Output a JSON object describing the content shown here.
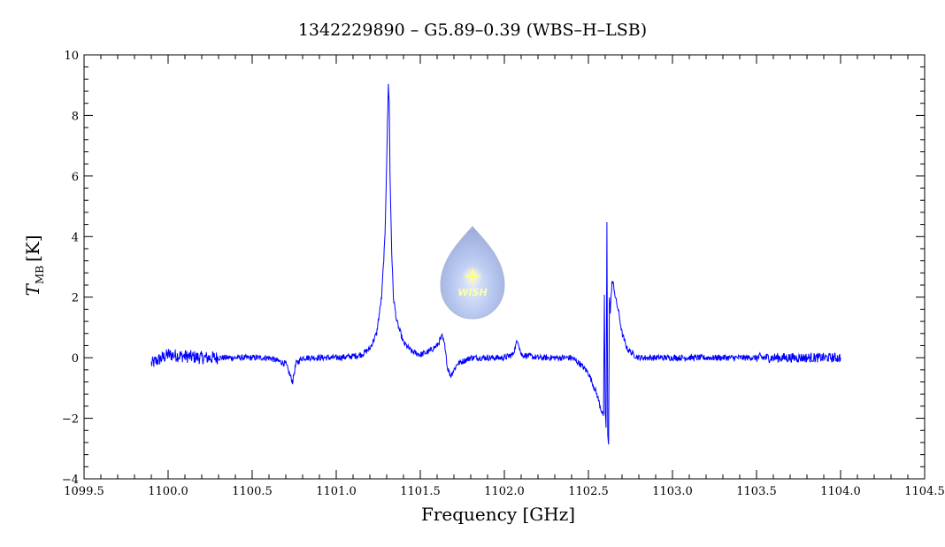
{
  "chart_data": {
    "type": "line",
    "title": "1342229890 – G5.89–0.39 (WBS–H–LSB)",
    "xlabel": "Frequency [GHz]",
    "ylabel": {
      "symbol": "T",
      "subscript": "MB",
      "unit": "[K]"
    },
    "xlim": [
      1099.5,
      1104.5
    ],
    "ylim": [
      -4,
      10
    ],
    "x_ticks": [
      "1099.5",
      "1100.0",
      "1100.5",
      "1101.0",
      "1101.5",
      "1102.0",
      "1102.5",
      "1103.0",
      "1103.5",
      "1104.0",
      "1104.5"
    ],
    "y_ticks": [
      "−4",
      "−2",
      "0",
      "2",
      "4",
      "6",
      "8",
      "10"
    ],
    "grid": false,
    "series_color": "#0000ff",
    "series": [
      {
        "x": [
          1099.9,
          1100.0,
          1100.2,
          1100.4,
          1100.6,
          1100.7,
          1100.74,
          1100.76,
          1100.8,
          1100.9,
          1101.0,
          1101.1,
          1101.15,
          1101.2,
          1101.24,
          1101.27,
          1101.29,
          1101.3,
          1101.31,
          1101.315,
          1101.32,
          1101.33,
          1101.34,
          1101.36,
          1101.4,
          1101.45,
          1101.5,
          1101.55,
          1101.6,
          1101.63,
          1101.65,
          1101.66,
          1101.68,
          1101.7,
          1101.72,
          1101.8,
          1101.9,
          1102.0,
          1102.05,
          1102.08,
          1102.1,
          1102.2,
          1102.3,
          1102.4,
          1102.45,
          1102.5,
          1102.55,
          1102.58,
          1102.59,
          1102.595,
          1102.6,
          1102.605,
          1102.61,
          1102.615,
          1102.62,
          1102.625,
          1102.63,
          1102.635,
          1102.64,
          1102.65,
          1102.66,
          1102.68,
          1102.7,
          1102.73,
          1102.77,
          1102.8,
          1102.9,
          1103.0,
          1103.2,
          1103.5,
          1103.8,
          1104.0
        ],
        "y": [
          -0.2,
          0.1,
          0.0,
          0.0,
          0.0,
          -0.2,
          -0.8,
          -0.2,
          0.0,
          0.0,
          0.0,
          0.05,
          0.1,
          0.3,
          0.8,
          2.0,
          4.0,
          6.5,
          9.0,
          8.5,
          6.0,
          3.5,
          2.0,
          1.2,
          0.5,
          0.2,
          0.1,
          0.2,
          0.4,
          0.7,
          0.3,
          -0.3,
          -0.6,
          -0.4,
          -0.2,
          0.0,
          0.0,
          0.0,
          0.1,
          0.6,
          0.1,
          0.0,
          0.0,
          0.0,
          -0.2,
          -0.5,
          -1.2,
          -1.8,
          -1.9,
          2.0,
          -1.8,
          -2.3,
          4.4,
          -2.6,
          -2.8,
          2.0,
          1.5,
          2.0,
          2.5,
          2.4,
          2.0,
          1.5,
          0.8,
          0.3,
          0.1,
          0.0,
          0.0,
          0.0,
          0.0,
          0.0,
          0.0,
          0.0
        ]
      }
    ]
  },
  "watermark": {
    "text": "WISH"
  }
}
